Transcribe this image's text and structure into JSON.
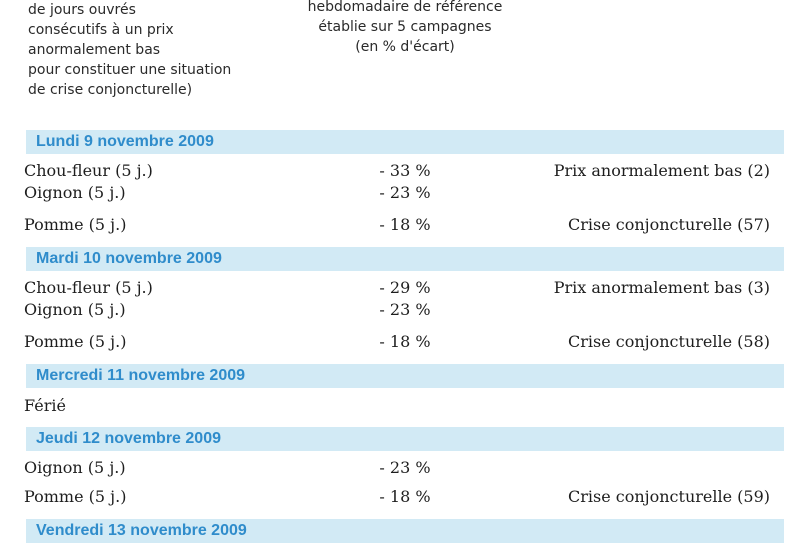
{
  "header": {
    "left_lines": [
      "de jours ouvrés",
      "consécutifs à un prix",
      "anormalement bas",
      "pour constituer une situation",
      "de crise conjoncturelle)"
    ],
    "mid_lines": [
      "hebdomadaire de référence",
      "établie sur 5 campagnes",
      "(en % d'écart)"
    ]
  },
  "days": [
    {
      "title": "Lundi 9 novembre 2009",
      "rows": [
        {
          "produit": "Chou-fleur (5 j.)",
          "ecart": "- 33 %",
          "statut": "Prix anormalement bas (2)"
        },
        {
          "produit": "Oignon (5 j.)",
          "ecart": "- 23 %",
          "statut": ""
        },
        {
          "produit": "Pomme (5 j.)",
          "ecart": "- 18 %",
          "statut": "Crise conjoncturelle (57)"
        }
      ]
    },
    {
      "title": "Mardi 10 novembre 2009",
      "rows": [
        {
          "produit": "Chou-fleur (5 j.)",
          "ecart": "- 29 %",
          "statut": "Prix anormalement bas (3)"
        },
        {
          "produit": "Oignon (5 j.)",
          "ecart": "- 23 %",
          "statut": ""
        },
        {
          "produit": "Pomme (5 j.)",
          "ecart": "- 18 %",
          "statut": "Crise conjoncturelle (58)"
        }
      ]
    },
    {
      "title": "Mercredi 11 novembre 2009",
      "note": "Férié"
    },
    {
      "title": "Jeudi 12 novembre 2009",
      "rows": [
        {
          "produit": "Oignon (5 j.)",
          "ecart": "- 23 %",
          "statut": ""
        },
        {
          "produit": "Pomme (5 j.)",
          "ecart": "- 18 %",
          "statut": "Crise conjoncturelle (59)"
        }
      ]
    },
    {
      "title": "Vendredi 13 novembre 2009"
    }
  ]
}
